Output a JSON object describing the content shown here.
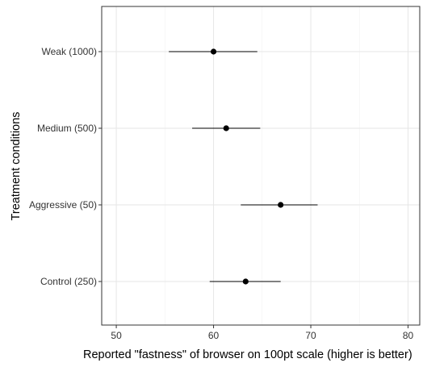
{
  "chart_data": {
    "type": "scatter",
    "orientation": "horizontal",
    "xlabel": "Reported \"fastness\" of browser on 100pt scale (higher is better)",
    "ylabel": "Treatment conditions",
    "xlim": [
      48.5,
      81.2
    ],
    "x_ticks": [
      50,
      60,
      70,
      80
    ],
    "grid": true,
    "categories": [
      "Weak (1000)",
      "Medium (500)",
      "Aggressive (50)",
      "Control (250)"
    ],
    "points": [
      {
        "category": "Weak (1000)",
        "mean": 60.0,
        "low": 55.4,
        "high": 64.5
      },
      {
        "category": "Medium (500)",
        "mean": 61.3,
        "low": 57.8,
        "high": 64.8
      },
      {
        "category": "Aggressive (50)",
        "mean": 66.9,
        "low": 62.8,
        "high": 70.7
      },
      {
        "category": "Control (250)",
        "mean": 63.3,
        "low": 59.6,
        "high": 66.9
      }
    ]
  },
  "colors": {
    "point": "#000000",
    "errorbar": "#000000",
    "grid_major": "#e6e6e6",
    "grid_minor": "#f2f2f2",
    "panel_border": "#333333",
    "tick_text": "#333333",
    "title_text": "#000000"
  }
}
